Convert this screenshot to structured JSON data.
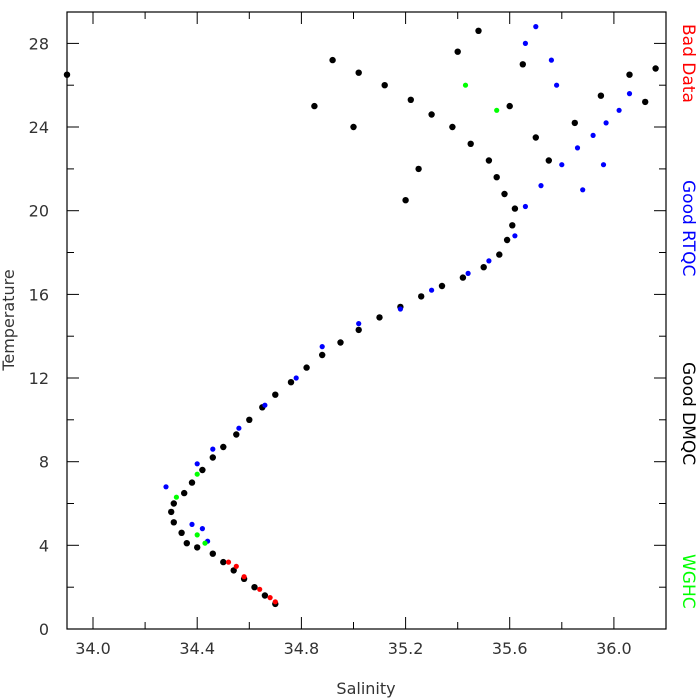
{
  "chart_data": {
    "type": "scatter",
    "title": "",
    "xlabel": "Salinity",
    "ylabel": "Temperature",
    "xlim": [
      33.9,
      36.2
    ],
    "ylim": [
      0,
      29.5
    ],
    "x_ticks": [
      34.0,
      34.4,
      34.8,
      35.2,
      35.6,
      36.0
    ],
    "x_tick_labels": [
      "34.0",
      "34.4",
      "34.8",
      "35.2",
      "35.6",
      "36.0"
    ],
    "y_ticks": [
      0,
      4,
      8,
      12,
      16,
      20,
      24,
      28
    ],
    "y_tick_labels": [
      "0",
      "4",
      "8",
      "12",
      "16",
      "20",
      "24",
      "28"
    ],
    "grid": false,
    "legend_placement": "right side, vertical",
    "legend": [
      {
        "label": "Bad Data",
        "color": "#ff0000"
      },
      {
        "label": "Good RTQC",
        "color": "#0000ff"
      },
      {
        "label": "Good DMQC",
        "color": "#000000"
      },
      {
        "label": "WGHC",
        "color": "#00ff00"
      }
    ],
    "series": [
      {
        "name": "Good DMQC",
        "color": "#000000",
        "points": [
          [
            34.7,
            1.2
          ],
          [
            34.66,
            1.6
          ],
          [
            34.62,
            2.0
          ],
          [
            34.58,
            2.4
          ],
          [
            34.54,
            2.8
          ],
          [
            34.5,
            3.2
          ],
          [
            34.46,
            3.6
          ],
          [
            34.4,
            3.9
          ],
          [
            34.36,
            4.1
          ],
          [
            34.34,
            4.6
          ],
          [
            34.31,
            5.1
          ],
          [
            34.3,
            5.6
          ],
          [
            34.31,
            6.0
          ],
          [
            34.35,
            6.5
          ],
          [
            34.38,
            7.0
          ],
          [
            34.42,
            7.6
          ],
          [
            34.46,
            8.2
          ],
          [
            34.5,
            8.7
          ],
          [
            34.55,
            9.3
          ],
          [
            34.6,
            10.0
          ],
          [
            34.65,
            10.6
          ],
          [
            34.7,
            11.2
          ],
          [
            34.76,
            11.8
          ],
          [
            34.82,
            12.5
          ],
          [
            34.88,
            13.1
          ],
          [
            34.95,
            13.7
          ],
          [
            35.02,
            14.3
          ],
          [
            35.1,
            14.9
          ],
          [
            35.18,
            15.4
          ],
          [
            35.26,
            15.9
          ],
          [
            35.34,
            16.4
          ],
          [
            35.42,
            16.8
          ],
          [
            35.5,
            17.3
          ],
          [
            35.56,
            17.9
          ],
          [
            35.59,
            18.6
          ],
          [
            35.61,
            19.3
          ],
          [
            35.62,
            20.1
          ],
          [
            35.58,
            20.8
          ],
          [
            35.55,
            21.6
          ],
          [
            35.52,
            22.4
          ],
          [
            35.45,
            23.2
          ],
          [
            35.38,
            24.0
          ],
          [
            35.3,
            24.6
          ],
          [
            35.22,
            25.3
          ],
          [
            35.12,
            26.0
          ],
          [
            35.02,
            26.6
          ],
          [
            34.92,
            27.2
          ],
          [
            35.48,
            28.6
          ],
          [
            35.6,
            25.0
          ],
          [
            35.7,
            23.5
          ],
          [
            35.75,
            22.4
          ],
          [
            35.85,
            24.2
          ],
          [
            35.95,
            25.5
          ],
          [
            36.06,
            26.5
          ],
          [
            36.12,
            25.2
          ],
          [
            36.16,
            26.8
          ],
          [
            35.65,
            27.0
          ],
          [
            35.4,
            27.6
          ],
          [
            34.85,
            25.0
          ],
          [
            35.0,
            24.0
          ],
          [
            35.25,
            22.0
          ],
          [
            35.2,
            20.5
          ],
          [
            33.9,
            26.5
          ]
        ]
      },
      {
        "name": "Good RTQC",
        "color": "#0000ff",
        "points": [
          [
            34.28,
            6.8
          ],
          [
            34.4,
            7.9
          ],
          [
            34.46,
            8.6
          ],
          [
            34.56,
            9.6
          ],
          [
            34.66,
            10.7
          ],
          [
            34.78,
            12.0
          ],
          [
            34.88,
            13.5
          ],
          [
            35.02,
            14.6
          ],
          [
            35.18,
            15.3
          ],
          [
            35.3,
            16.2
          ],
          [
            35.44,
            17.0
          ],
          [
            35.52,
            17.6
          ],
          [
            35.62,
            18.8
          ],
          [
            35.66,
            20.2
          ],
          [
            35.72,
            21.2
          ],
          [
            35.8,
            22.2
          ],
          [
            35.86,
            23.0
          ],
          [
            35.92,
            23.6
          ],
          [
            35.97,
            24.2
          ],
          [
            36.02,
            24.8
          ],
          [
            36.06,
            25.6
          ],
          [
            35.96,
            22.2
          ],
          [
            35.88,
            21.0
          ],
          [
            35.78,
            26.0
          ],
          [
            35.7,
            28.8
          ],
          [
            35.66,
            28.0
          ],
          [
            35.76,
            27.2
          ],
          [
            34.42,
            4.8
          ],
          [
            34.44,
            4.2
          ],
          [
            34.38,
            5.0
          ]
        ]
      },
      {
        "name": "Bad Data",
        "color": "#ff0000",
        "points": [
          [
            34.7,
            1.3
          ],
          [
            34.68,
            1.5
          ],
          [
            34.64,
            1.9
          ],
          [
            34.58,
            2.5
          ],
          [
            34.55,
            3.0
          ],
          [
            34.52,
            3.2
          ]
        ]
      },
      {
        "name": "WGHC",
        "color": "#00ff00",
        "points": [
          [
            35.43,
            26.0
          ],
          [
            35.55,
            24.8
          ],
          [
            34.32,
            6.3
          ],
          [
            34.4,
            7.4
          ],
          [
            34.4,
            4.5
          ],
          [
            34.43,
            4.1
          ]
        ]
      }
    ]
  }
}
